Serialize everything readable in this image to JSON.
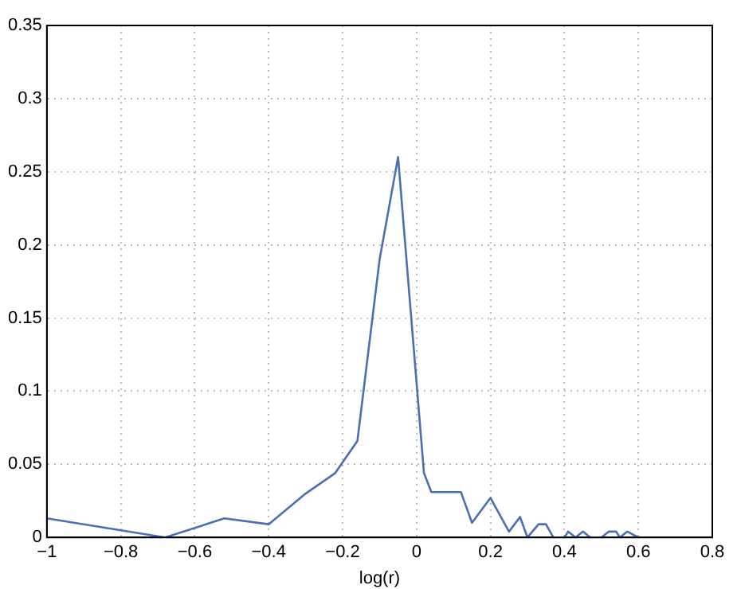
{
  "chart_data": {
    "type": "line",
    "xlabel": "log(r)",
    "x": [
      -1,
      -0.68,
      -0.52,
      -0.4,
      -0.3,
      -0.22,
      -0.16,
      -0.1,
      -0.05,
      0.02,
      0.04,
      0.08,
      0.12,
      0.15,
      0.2,
      0.25,
      0.28,
      0.3,
      0.33,
      0.35,
      0.37,
      0.4,
      0.41,
      0.43,
      0.45,
      0.47,
      0.5,
      0.52,
      0.54,
      0.55,
      0.57,
      0.6
    ],
    "series": [
      {
        "color": "#4a6fb5",
        "values": [
          0.013,
          0,
          0.013,
          0.009,
          0.03,
          0.044,
          0.066,
          0.19,
          0.26,
          0.044,
          0.031,
          0.031,
          0.031,
          0.01,
          0.027,
          0.004,
          0.014,
          0,
          0.009,
          0.009,
          0,
          0,
          0.004,
          0,
          0.004,
          0,
          0,
          0.004,
          0.004,
          0,
          0.004,
          0
        ]
      }
    ],
    "xlim": [
      -1,
      0.8
    ],
    "xticks": [
      -1,
      -0.8,
      -0.6,
      -0.4,
      -0.2,
      0,
      0.2,
      0.4,
      0.6,
      0.8
    ],
    "ylim": [
      0,
      0.35
    ],
    "yticks": [
      0,
      0.05,
      0.1,
      0.15,
      0.2,
      0.25,
      0.3,
      0.35
    ],
    "grid": true,
    "legend": false,
    "marker": "none",
    "line_style": "solid"
  }
}
